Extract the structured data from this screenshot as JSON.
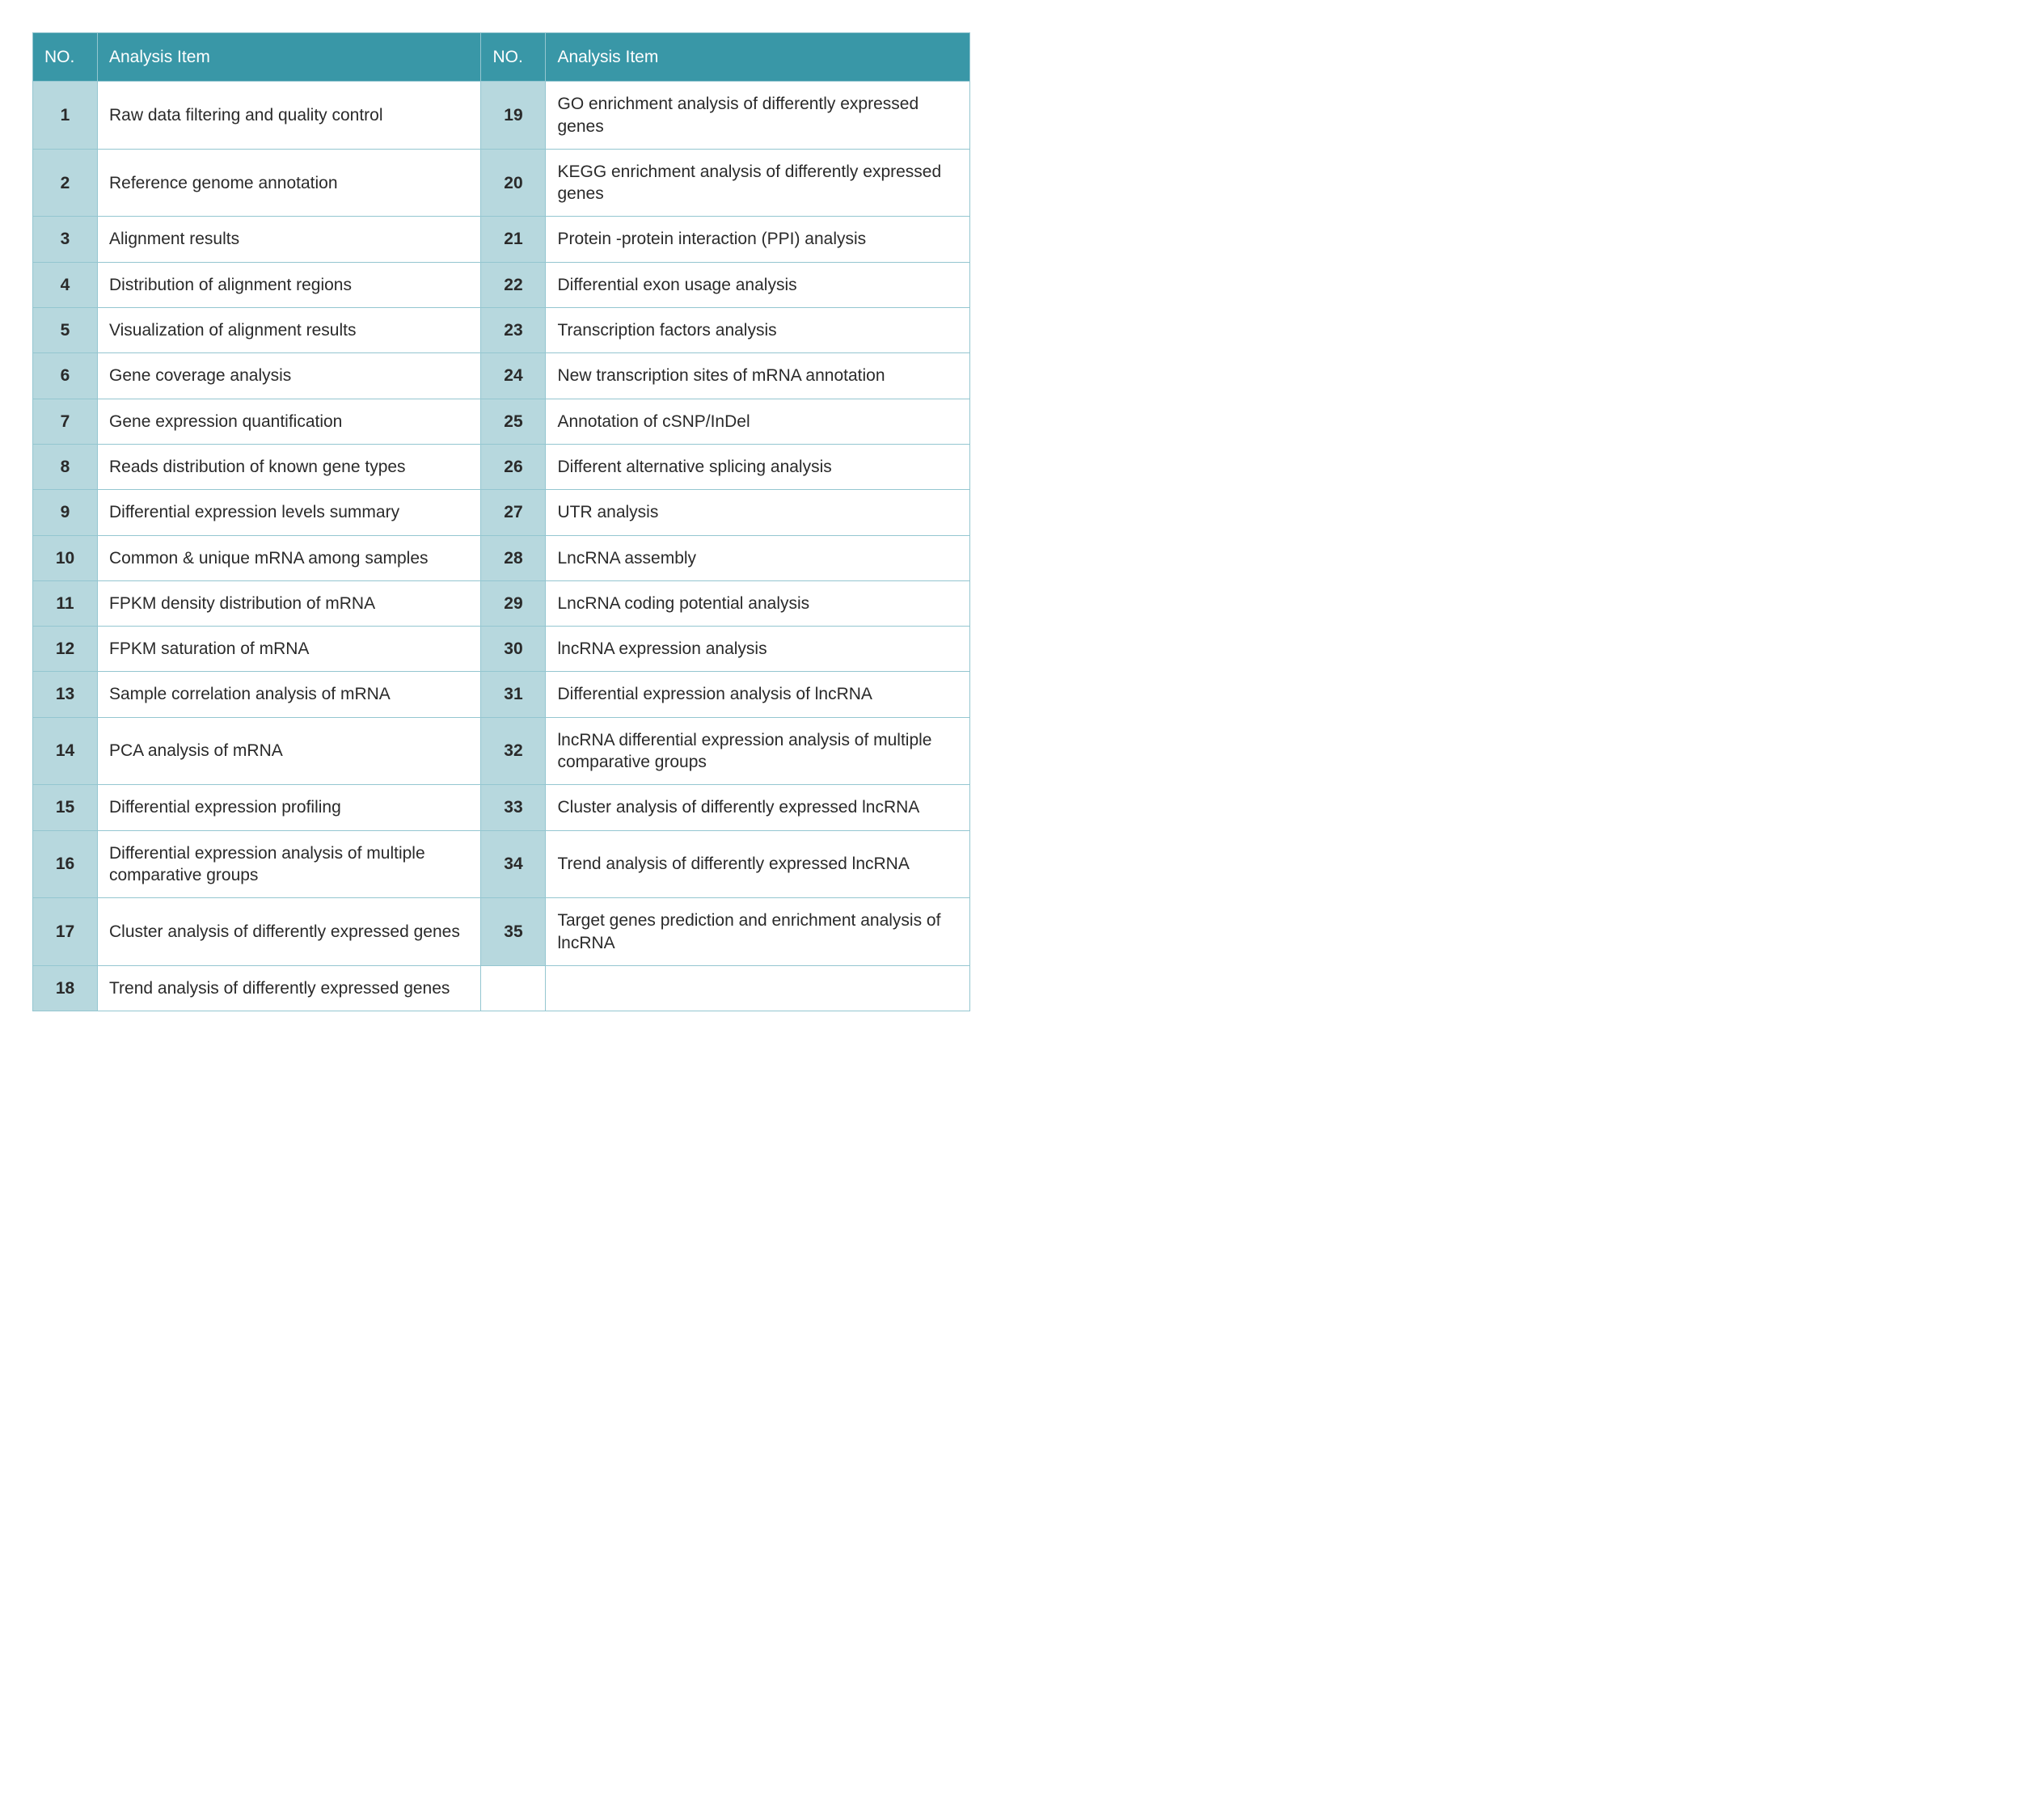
{
  "table": {
    "type": "table",
    "header_bg": "#3997a7",
    "header_text_color": "#ffffff",
    "num_cell_bg": "#b7d8de",
    "border_color": "#94c6d0",
    "cell_text_color": "#2a2a2a",
    "font_size_pt": 16,
    "columns": [
      {
        "label": "NO."
      },
      {
        "label": "Analysis Item"
      },
      {
        "label": "NO."
      },
      {
        "label": "Analysis Item"
      }
    ],
    "rows": [
      {
        "left_no": "1",
        "left_item": "Raw data filtering and quality control",
        "right_no": "19",
        "right_item": "GO enrichment analysis of differently expressed genes"
      },
      {
        "left_no": "2",
        "left_item": "Reference genome annotation",
        "right_no": "20",
        "right_item": "KEGG enrichment analysis of differently expressed genes"
      },
      {
        "left_no": "3",
        "left_item": "Alignment results",
        "right_no": "21",
        "right_item": "Protein -protein interaction (PPI) analysis"
      },
      {
        "left_no": "4",
        "left_item": "Distribution of alignment regions",
        "right_no": "22",
        "right_item": "Differential exon usage analysis"
      },
      {
        "left_no": "5",
        "left_item": "Visualization of alignment results",
        "right_no": "23",
        "right_item": "Transcription factors analysis"
      },
      {
        "left_no": "6",
        "left_item": "Gene coverage analysis",
        "right_no": "24",
        "right_item": "New transcription sites of mRNA annotation"
      },
      {
        "left_no": "7",
        "left_item": "Gene expression quantification",
        "right_no": "25",
        "right_item": "Annotation of cSNP/InDel"
      },
      {
        "left_no": "8",
        "left_item": "Reads distribution of known gene types",
        "right_no": "26",
        "right_item": "Different alternative splicing analysis"
      },
      {
        "left_no": "9",
        "left_item": "Differential expression levels summary",
        "right_no": "27",
        "right_item": "UTR analysis"
      },
      {
        "left_no": "10",
        "left_item": "Common & unique mRNA among samples",
        "right_no": "28",
        "right_item": "LncRNA assembly"
      },
      {
        "left_no": "11",
        "left_item": "FPKM density distribution of mRNA",
        "right_no": "29",
        "right_item": "LncRNA coding potential analysis"
      },
      {
        "left_no": "12",
        "left_item": "FPKM saturation of mRNA",
        "right_no": "30",
        "right_item": "lncRNA expression analysis"
      },
      {
        "left_no": "13",
        "left_item": "Sample correlation analysis of mRNA",
        "right_no": "31",
        "right_item": "Differential expression analysis of lncRNA"
      },
      {
        "left_no": "14",
        "left_item": "PCA analysis of mRNA",
        "right_no": "32",
        "right_item": "lncRNA differential expression analysis of multiple comparative groups"
      },
      {
        "left_no": "15",
        "left_item": "Differential expression profiling",
        "right_no": "33",
        "right_item": "Cluster analysis of differently expressed lncRNA"
      },
      {
        "left_no": "16",
        "left_item": "Differential expression analysis of multiple comparative groups",
        "right_no": "34",
        "right_item": "Trend analysis of differently expressed lncRNA"
      },
      {
        "left_no": "17",
        "left_item": "Cluster analysis of differently expressed genes",
        "right_no": "35",
        "right_item": "Target genes prediction and enrichment analysis of lncRNA"
      },
      {
        "left_no": "18",
        "left_item": "Trend analysis of differently expressed genes",
        "right_no": "",
        "right_item": ""
      }
    ]
  }
}
